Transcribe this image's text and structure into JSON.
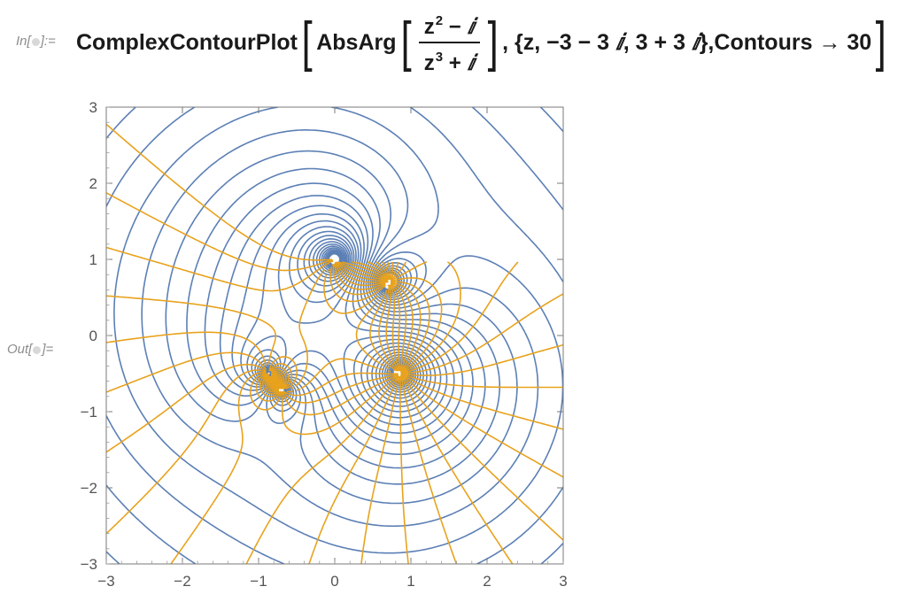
{
  "notebook": {
    "input_label_pre": "In[",
    "input_label_post": "]:=",
    "output_label_pre": "Out[",
    "output_label_post": "]=",
    "input": {
      "function_name": "ComplexContourPlot",
      "inner_function": "AbsArg",
      "numerator": "z",
      "numerator_exp": "2",
      "numerator_rest": " − ",
      "numerator_i": "ⅈ",
      "denominator": "z",
      "denominator_exp": "3",
      "denominator_rest": " + ",
      "denominator_i": "ⅈ",
      "range_prefix": ", {z, −3 − 3 ",
      "range_i1": "ⅈ",
      "range_mid": ", 3 + 3 ",
      "range_i2": "ⅈ",
      "range_suffix": "}, ",
      "option_name": "Contours",
      "option_arrow": " → ",
      "option_value": "30"
    }
  },
  "chart_data": {
    "type": "contour",
    "xlim": [
      -3,
      3
    ],
    "ylim": [
      -3,
      3
    ],
    "x_ticks": [
      "−3",
      "−2",
      "−1",
      "0",
      "1",
      "2",
      "3"
    ],
    "y_ticks": [
      "3",
      "2",
      "1",
      "0",
      "−1",
      "−2",
      "−3"
    ],
    "contours": 30,
    "abs_color": "#5b7fb5",
    "arg_color": "#e8a21c",
    "zeros": [
      [
        -0.707,
        -0.707
      ],
      [
        0.707,
        0.707
      ]
    ],
    "poles": [
      [
        0,
        1
      ],
      [
        0.866,
        -0.5
      ],
      [
        -0.866,
        -0.5
      ]
    ]
  }
}
